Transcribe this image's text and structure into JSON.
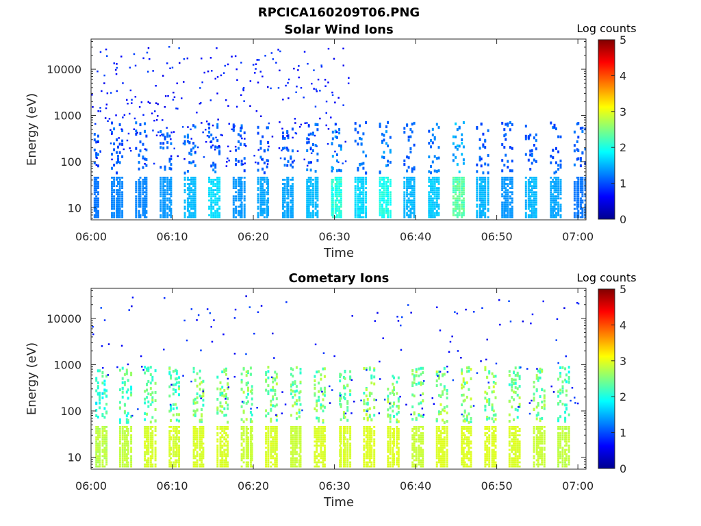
{
  "figure": {
    "title": "RPCICA160209T06.PNG"
  },
  "chart_data": [
    {
      "type": "heatmap",
      "title": "Solar Wind Ions",
      "xlabel": "Time",
      "ylabel": "Energy (eV)",
      "y_scale": "log",
      "xlim": [
        "06:00",
        "07:01"
      ],
      "ylim": [
        5.5,
        45000
      ],
      "x_ticks": [
        "06:00",
        "06:10",
        "06:20",
        "06:30",
        "06:40",
        "06:50",
        "07:00"
      ],
      "y_ticks": [
        "10",
        "100",
        "1000",
        "10000"
      ],
      "colorbar": {
        "label": "Log counts",
        "min": 0,
        "max": 5,
        "ticks": [
          "0",
          "1",
          "2",
          "3",
          "4",
          "5"
        ]
      },
      "bursts": [
        {
          "t": "06:00",
          "lo": 1.2,
          "hi": 1.2
        },
        {
          "t": "06:03",
          "lo": 1.2,
          "hi": 1.3
        },
        {
          "t": "06:06",
          "lo": 1.2,
          "hi": 1.3
        },
        {
          "t": "06:09",
          "lo": 1.2,
          "hi": 1.4
        },
        {
          "t": "06:12",
          "lo": 1.3,
          "hi": 1.6
        },
        {
          "t": "06:15",
          "lo": 1.3,
          "hi": 1.8
        },
        {
          "t": "06:18",
          "lo": 1.2,
          "hi": 1.4
        },
        {
          "t": "06:21",
          "lo": 1.2,
          "hi": 1.5
        },
        {
          "t": "06:24",
          "lo": 1.2,
          "hi": 1.5
        },
        {
          "t": "06:27",
          "lo": 1.3,
          "hi": 1.6
        },
        {
          "t": "06:30",
          "lo": 1.4,
          "hi": 2.2
        },
        {
          "t": "06:33",
          "lo": 1.3,
          "hi": 1.8
        },
        {
          "t": "06:36",
          "lo": 1.4,
          "hi": 2.1
        },
        {
          "t": "06:39",
          "lo": 1.2,
          "hi": 1.6
        },
        {
          "t": "06:42",
          "lo": 1.3,
          "hi": 1.7
        },
        {
          "t": "06:45",
          "lo": 1.6,
          "hi": 2.5
        },
        {
          "t": "06:48",
          "lo": 1.2,
          "hi": 1.6
        },
        {
          "t": "06:51",
          "lo": 1.2,
          "hi": 1.4
        },
        {
          "t": "06:54",
          "lo": 1.2,
          "hi": 1.6
        },
        {
          "t": "06:57",
          "lo": 1.2,
          "hi": 1.5
        },
        {
          "t": "07:00",
          "lo": 1.2,
          "hi": 1.2
        }
      ]
    },
    {
      "type": "heatmap",
      "title": "Cometary Ions",
      "xlabel": "Time",
      "ylabel": "Energy (eV)",
      "y_scale": "log",
      "xlim": [
        "06:00",
        "07:01"
      ],
      "ylim": [
        5.5,
        45000
      ],
      "x_ticks": [
        "06:00",
        "06:10",
        "06:20",
        "06:30",
        "06:40",
        "06:50",
        "07:00"
      ],
      "y_ticks": [
        "10",
        "100",
        "1000",
        "10000"
      ],
      "colorbar": {
        "label": "Log counts",
        "min": 0,
        "max": 5,
        "ticks": [
          "0",
          "1",
          "2",
          "3",
          "4",
          "5"
        ]
      },
      "bursts": [
        {
          "t": "06:01",
          "lo": 2.3,
          "hi": 2.9
        },
        {
          "t": "06:04",
          "lo": 2.5,
          "hi": 2.9
        },
        {
          "t": "06:07",
          "lo": 2.6,
          "hi": 3.0
        },
        {
          "t": "06:10",
          "lo": 2.6,
          "hi": 3.0
        },
        {
          "t": "06:13",
          "lo": 2.7,
          "hi": 3.0
        },
        {
          "t": "06:16",
          "lo": 2.7,
          "hi": 3.0
        },
        {
          "t": "06:19",
          "lo": 2.7,
          "hi": 2.9
        },
        {
          "t": "06:22",
          "lo": 2.7,
          "hi": 3.0
        },
        {
          "t": "06:25",
          "lo": 2.7,
          "hi": 2.9
        },
        {
          "t": "06:28",
          "lo": 2.7,
          "hi": 3.0
        },
        {
          "t": "06:31",
          "lo": 2.7,
          "hi": 3.0
        },
        {
          "t": "06:34",
          "lo": 2.8,
          "hi": 3.0
        },
        {
          "t": "06:37",
          "lo": 2.8,
          "hi": 3.0
        },
        {
          "t": "06:40",
          "lo": 2.7,
          "hi": 2.9
        },
        {
          "t": "06:43",
          "lo": 2.8,
          "hi": 3.0
        },
        {
          "t": "06:46",
          "lo": 2.8,
          "hi": 3.0
        },
        {
          "t": "06:49",
          "lo": 2.8,
          "hi": 3.0
        },
        {
          "t": "06:52",
          "lo": 2.7,
          "hi": 3.0
        },
        {
          "t": "06:55",
          "lo": 2.7,
          "hi": 2.9
        },
        {
          "t": "06:58",
          "lo": 2.5,
          "hi": 2.9
        }
      ]
    }
  ]
}
